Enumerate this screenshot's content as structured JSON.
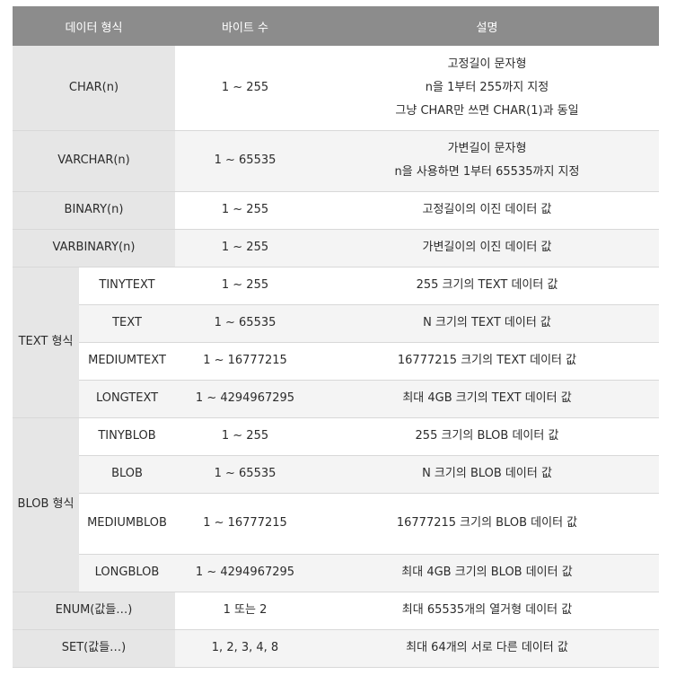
{
  "headers": [
    "데이터 형식",
    "바이트 수",
    "설명"
  ],
  "rows": {
    "char": {
      "type": "CHAR(n)",
      "bytes": "1 ~ 255",
      "desc": [
        "고정길이 문자형",
        "n을 1부터 255까지 지정",
        "그냥 CHAR만 쓰면 CHAR(1)과 동일"
      ]
    },
    "varchar": {
      "type": "VARCHAR(n)",
      "bytes": "1 ~ 65535",
      "desc": [
        "가변길이 문자형",
        "n을 사용하면 1부터 65535까지 지정"
      ]
    },
    "binary": {
      "type": "BINARY(n)",
      "bytes": "1 ~ 255",
      "desc": "고정길이의 이진 데이터 값"
    },
    "varbinary": {
      "type": "VARBINARY(n)",
      "bytes": "1 ~ 255",
      "desc": "가변길이의 이진 데이터 값"
    },
    "text_group": {
      "label": "TEXT 형식",
      "items": [
        {
          "type": "TINYTEXT",
          "bytes": "1 ~ 255",
          "desc": "255 크기의 TEXT 데이터 값"
        },
        {
          "type": "TEXT",
          "bytes": "1 ~ 65535",
          "desc": "N 크기의 TEXT 데이터 값"
        },
        {
          "type": "MEDIUMTEXT",
          "bytes": "1 ~ 16777215",
          "desc": "16777215 크기의 TEXT 데이터 값"
        },
        {
          "type": "LONGTEXT",
          "bytes": "1 ~ 4294967295",
          "desc": "최대 4GB 크기의 TEXT 데이터 값"
        }
      ]
    },
    "blob_group": {
      "label": "BLOB 형식",
      "items": [
        {
          "type": "TINYBLOB",
          "bytes": "1 ~ 255",
          "desc": "255 크기의 BLOB 데이터 값"
        },
        {
          "type": "BLOB",
          "bytes": "1 ~ 65535",
          "desc": "N 크기의 BLOB 데이터 값"
        },
        {
          "type": "MEDIUMBLOB",
          "bytes": "1 ~ 16777215",
          "desc": "16777215 크기의 BLOB 데이터 값"
        },
        {
          "type": "LONGBLOB",
          "bytes": "1 ~ 4294967295",
          "desc": "최대 4GB 크기의 BLOB 데이터 값"
        }
      ]
    },
    "enum": {
      "type": "ENUM(값들…)",
      "bytes": "1 또는 2",
      "desc": "최대 65535개의 열거형 데이터 값"
    },
    "set": {
      "type": "SET(값들…)",
      "bytes": "1, 2, 3, 4, 8",
      "desc": "최대 64개의 서로 다른 데이터 값"
    }
  }
}
